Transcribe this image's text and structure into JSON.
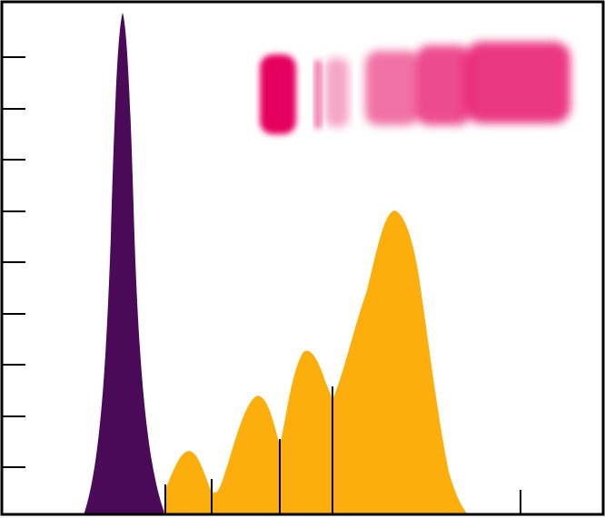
{
  "figure": {
    "colors": {
      "frame": "#000000",
      "background": "#ffffff",
      "purple_peak": "#4b0a57",
      "orange_peaks": "#fbae0c",
      "gel_band": "#e5005f"
    },
    "left_axis_ticks": 9,
    "bottom_axis_ticks": 5
  }
}
